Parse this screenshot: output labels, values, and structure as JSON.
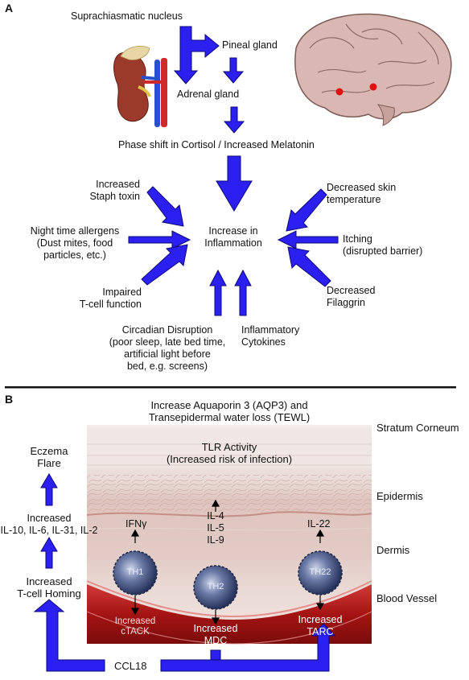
{
  "panel_a": {
    "letter": "A",
    "scn": "Suprachiasmatic nucleus",
    "pineal": "Pineal gland",
    "adrenal": "Adrenal gland",
    "phase_shift": "Phase shift in Cortisol / Increased Melatonin",
    "center": [
      "Increase in",
      "Inflammation"
    ],
    "staph": [
      "Increased",
      "Staph toxin"
    ],
    "allergens": [
      "Night time allergens",
      "(Dust mites, food",
      "particles, etc.)"
    ],
    "tcell": [
      "Impaired",
      "T-cell function"
    ],
    "circadian": [
      "Circadian Disruption",
      "(poor sleep, late bed time,",
      "artificial light before",
      "bed, e.g. screens)"
    ],
    "cytokines": [
      "Inflammatory",
      "Cytokines"
    ],
    "skin_temp": [
      "Decreased skin",
      "temperature"
    ],
    "itching": [
      "Itching",
      "(disrupted barrier)"
    ],
    "filaggrin": [
      "Decreased",
      "Filaggrin"
    ]
  },
  "panel_b": {
    "letter": "B",
    "aqp3": [
      "Increase Aquaporin 3 (AQP3) and",
      "Transepidermal water loss (TEWL)"
    ],
    "tlr": [
      "TLR Activity",
      "(Increased risk of infection)"
    ],
    "layers": {
      "stratum": "Stratum Corneum",
      "epidermis": "Epidermis",
      "dermis": "Dermis",
      "vessel": "Blood Vessel"
    },
    "eczema": [
      "Eczema",
      "Flare"
    ],
    "interleukins": [
      "Increased",
      "IL-10, IL-6, IL-31, IL-2"
    ],
    "homing": [
      "Increased",
      "T-cell Homing"
    ],
    "ifng": "IFNγ",
    "il_mid": [
      "IL-4",
      "IL-5",
      "IL-9"
    ],
    "il22": "IL-22",
    "th1": "TH1",
    "th2": "TH2",
    "th22": "TH22",
    "ctack": [
      "Increased",
      "cTACK"
    ],
    "mdc": [
      "Increased",
      "MDC"
    ],
    "tarc": [
      "Increased",
      "TARC"
    ],
    "ccl18": "CCL18"
  },
  "colors": {
    "arrow_fill": "#2b20f0",
    "arrow_stroke": "#0c0878",
    "vessel": "#b01818",
    "skin": "#e8cdc7",
    "cell": "#3a4a78"
  }
}
